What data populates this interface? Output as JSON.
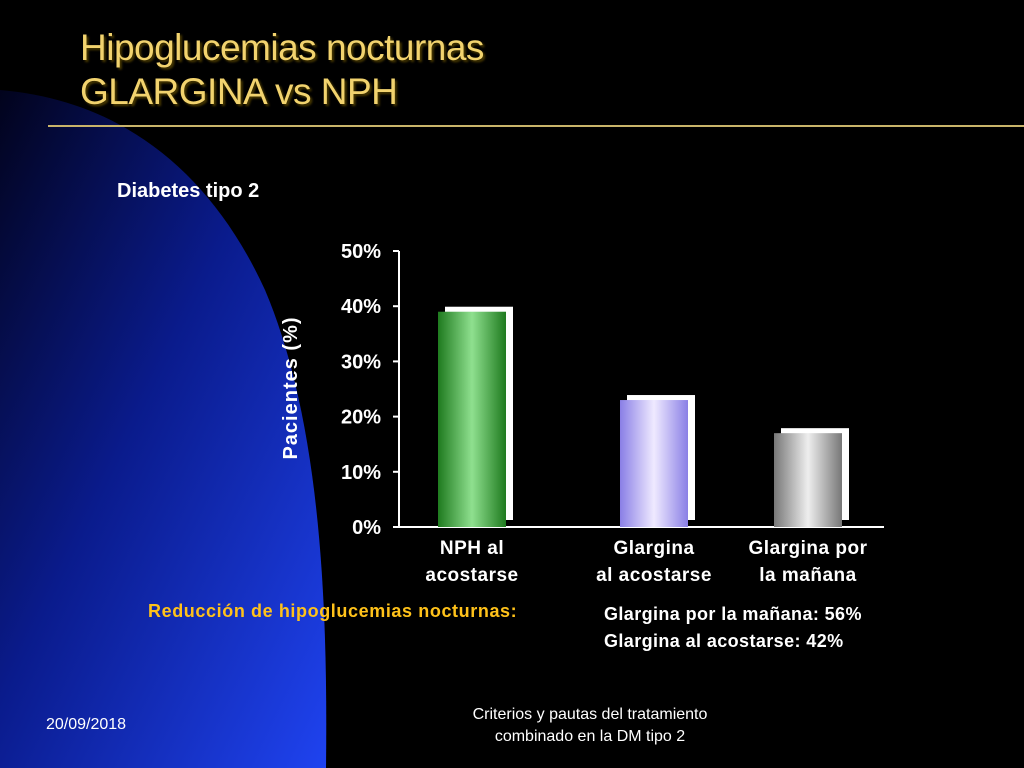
{
  "slide": {
    "title_line1": "Hipoglucemias nocturnas",
    "title_line2": "GLARGINA vs NPH",
    "subtitle": "Diabetes tipo 2",
    "reduction_label": "Reducción de hipoglucemias nocturnas:",
    "reduction_values": [
      "Glargina por la mañana: 56%",
      "Glargina al acostarse: 42%"
    ],
    "footer_date": "20/09/2018",
    "footer_center": [
      "Criterios y pautas del tratamiento",
      "combinado en la DM tipo 2"
    ]
  },
  "colors": {
    "background": "#000000",
    "title": "#f2d36e",
    "accent_label": "#ffc21a",
    "rule": "#c9b46a",
    "sidebar_blue_dark": "#03052e",
    "sidebar_blue_light": "#1a3be0"
  },
  "chart_data": {
    "type": "bar",
    "categories": [
      [
        "NPH al",
        "acostarse"
      ],
      [
        "Glargina",
        "al acostarse"
      ],
      [
        "Glargina por",
        "la mañana"
      ]
    ],
    "values": [
      39,
      23,
      17
    ],
    "unit": "%",
    "ylabel": "Pacientes (%)",
    "ylim": [
      0,
      50
    ],
    "yticks": [
      "0%",
      "10%",
      "20%",
      "30%",
      "40%",
      "50%"
    ],
    "bar_colors": [
      [
        "#1e7a1e",
        "#8fe08f",
        "#1e7a1e"
      ],
      [
        "#8a7fe6",
        "#efeaff",
        "#8a7fe6"
      ],
      [
        "#777777",
        "#eeeeee",
        "#777777"
      ]
    ],
    "grid": false,
    "legend": "none"
  }
}
